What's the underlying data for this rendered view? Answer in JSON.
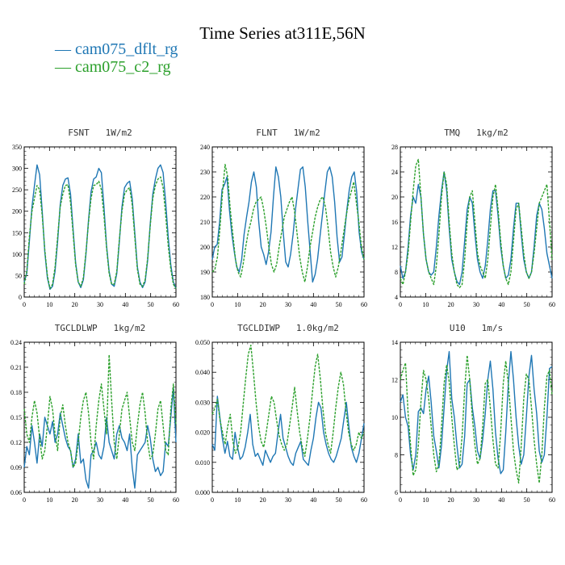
{
  "title": "Time Series at311E,56N",
  "legend": [
    {
      "label": "— cam075_dflt_rg",
      "color": "#1f77b4"
    },
    {
      "label": "— cam075_c2_rg",
      "color": "#2ca02c"
    }
  ],
  "colors": {
    "series1": "#1f77b4",
    "series2": "#2ca02c"
  },
  "chart_data": [
    {
      "type": "line",
      "title": "FSNT   1W/m2",
      "xlim": [
        0,
        60
      ],
      "ylim": [
        0,
        350
      ],
      "xticks": [
        "0",
        "10",
        "20",
        "30",
        "40",
        "50",
        "60"
      ],
      "yticks": [
        "0",
        "50",
        "100",
        "150",
        "200",
        "250",
        "300",
        "350"
      ],
      "series": [
        {
          "name": "cam075_dflt_rg",
          "values": [
            35,
            55,
            130,
            210,
            260,
            308,
            285,
            200,
            105,
            45,
            18,
            25,
            60,
            130,
            215,
            260,
            275,
            278,
            240,
            160,
            80,
            35,
            22,
            40,
            100,
            180,
            245,
            275,
            280,
            300,
            290,
            210,
            120,
            60,
            30,
            25,
            55,
            130,
            210,
            255,
            265,
            270,
            230,
            150,
            70,
            35,
            22,
            35,
            85,
            170,
            240,
            275,
            300,
            308,
            290,
            220,
            140,
            75,
            35,
            20
          ]
        },
        {
          "name": "cam075_c2_rg",
          "values": [
            30,
            60,
            140,
            200,
            230,
            260,
            250,
            190,
            110,
            50,
            20,
            30,
            70,
            140,
            210,
            240,
            260,
            262,
            220,
            150,
            75,
            35,
            25,
            45,
            105,
            175,
            230,
            260,
            262,
            270,
            250,
            190,
            115,
            55,
            30,
            30,
            60,
            135,
            200,
            240,
            250,
            255,
            215,
            140,
            65,
            30,
            25,
            40,
            90,
            165,
            230,
            260,
            275,
            280,
            255,
            190,
            120,
            65,
            30,
            20
          ]
        }
      ]
    },
    {
      "type": "line",
      "title": "FLNT   1W/m2",
      "xlim": [
        0,
        60
      ],
      "ylim": [
        180,
        240
      ],
      "xticks": [
        "0",
        "10",
        "20",
        "30",
        "40",
        "50",
        "60"
      ],
      "yticks": [
        "180",
        "190",
        "200",
        "210",
        "220",
        "230",
        "240"
      ],
      "series": [
        {
          "name": "cam075_dflt_rg",
          "values": [
            195,
            200,
            201,
            210,
            223,
            225,
            228,
            215,
            205,
            198,
            192,
            190,
            195,
            205,
            212,
            218,
            226,
            230,
            224,
            210,
            200,
            197,
            193,
            198,
            206,
            220,
            232,
            228,
            220,
            206,
            194,
            192,
            197,
            205,
            215,
            223,
            231,
            232,
            224,
            210,
            198,
            186,
            189,
            195,
            204,
            213,
            222,
            230,
            232,
            228,
            218,
            204,
            194,
            196,
            205,
            215,
            223,
            228,
            230,
            222,
            206,
            198,
            195
          ]
        },
        {
          "name": "cam075_c2_rg",
          "values": [
            190,
            191,
            196,
            208,
            222,
            233,
            228,
            215,
            205,
            195,
            190,
            188,
            193,
            200,
            206,
            210,
            215,
            218,
            219,
            220,
            215,
            208,
            200,
            193,
            190,
            193,
            200,
            206,
            212,
            215,
            218,
            220,
            214,
            205,
            196,
            190,
            186,
            192,
            200,
            206,
            212,
            216,
            219,
            220,
            216,
            208,
            198,
            192,
            188,
            192,
            198,
            205,
            212,
            218,
            222,
            226,
            218,
            210,
            200,
            195
          ]
        }
      ]
    },
    {
      "type": "line",
      "title": "TMQ   1kg/m2",
      "xlim": [
        0,
        60
      ],
      "ylim": [
        4,
        28
      ],
      "xticks": [
        "0",
        "10",
        "20",
        "30",
        "40",
        "50",
        "60"
      ],
      "yticks": [
        "4",
        "8",
        "12",
        "16",
        "20",
        "24",
        "28"
      ],
      "series": [
        {
          "name": "cam075_dflt_rg",
          "values": [
            9,
            7,
            8,
            12,
            17,
            20,
            19,
            22,
            20,
            14,
            10,
            8,
            7.5,
            8,
            12,
            17,
            21,
            24,
            21,
            15,
            10,
            8,
            6.5,
            6,
            8,
            13,
            18,
            20,
            19,
            14,
            10,
            8,
            7,
            9,
            13,
            18,
            21,
            21,
            17,
            12,
            9,
            7,
            7.5,
            10,
            15,
            19,
            19,
            14,
            10,
            8,
            7,
            8,
            12,
            17,
            19,
            18,
            15,
            11,
            9,
            7
          ]
        },
        {
          "name": "cam075_c2_rg",
          "values": [
            7,
            6,
            8,
            11,
            16,
            21,
            25,
            26,
            20,
            14,
            10,
            8,
            7,
            6,
            9,
            14,
            20,
            24,
            22,
            16,
            11,
            8,
            6,
            5.5,
            6,
            10,
            16,
            20,
            21,
            16,
            11,
            9,
            8,
            7,
            10,
            15,
            20,
            22,
            18,
            13,
            9,
            7,
            6,
            8,
            13,
            18,
            19,
            15,
            11,
            8,
            7,
            8,
            11,
            15,
            19,
            20,
            21,
            22,
            16,
            10
          ]
        }
      ]
    },
    {
      "type": "line",
      "title": "TGCLDLWP   1kg/m2",
      "xlim": [
        0,
        60
      ],
      "ylim": [
        0.06,
        0.24
      ],
      "xticks": [
        "0",
        "10",
        "20",
        "30",
        "40",
        "50",
        "60"
      ],
      "yticks": [
        "0.06",
        "0.09",
        "0.12",
        "0.15",
        "0.18",
        "0.21",
        "0.24"
      ],
      "series": [
        {
          "name": "cam075_dflt_rg",
          "values": [
            0.09,
            0.115,
            0.105,
            0.14,
            0.12,
            0.095,
            0.13,
            0.115,
            0.15,
            0.14,
            0.13,
            0.145,
            0.12,
            0.13,
            0.155,
            0.14,
            0.125,
            0.115,
            0.11,
            0.09,
            0.1,
            0.13,
            0.095,
            0.1,
            0.075,
            0.065,
            0.105,
            0.11,
            0.12,
            0.105,
            0.1,
            0.115,
            0.15,
            0.12,
            0.11,
            0.1,
            0.13,
            0.14,
            0.125,
            0.12,
            0.11,
            0.13,
            0.09,
            0.065,
            0.105,
            0.11,
            0.115,
            0.12,
            0.14,
            0.125,
            0.1,
            0.085,
            0.09,
            0.08,
            0.085,
            0.12,
            0.115,
            0.15,
            0.185,
            0.12
          ]
        },
        {
          "name": "cam075_c2_rg",
          "values": [
            0.16,
            0.13,
            0.12,
            0.15,
            0.17,
            0.155,
            0.125,
            0.1,
            0.11,
            0.14,
            0.175,
            0.16,
            0.13,
            0.11,
            0.15,
            0.165,
            0.14,
            0.12,
            0.11,
            0.09,
            0.095,
            0.12,
            0.15,
            0.17,
            0.18,
            0.155,
            0.12,
            0.1,
            0.14,
            0.17,
            0.19,
            0.16,
            0.13,
            0.225,
            0.17,
            0.12,
            0.1,
            0.13,
            0.16,
            0.17,
            0.18,
            0.15,
            0.12,
            0.11,
            0.14,
            0.165,
            0.18,
            0.155,
            0.12,
            0.1,
            0.105,
            0.13,
            0.16,
            0.17,
            0.14,
            0.11,
            0.105,
            0.16,
            0.19,
            0.14
          ]
        }
      ]
    },
    {
      "type": "line",
      "title": "TGCLDIWP   1.0kg/m2",
      "xlim": [
        0,
        60
      ],
      "ylim": [
        0.0,
        0.05
      ],
      "xticks": [
        "0",
        "10",
        "20",
        "30",
        "40",
        "50",
        "60"
      ],
      "yticks": [
        "0.000",
        "0.010",
        "0.020",
        "0.030",
        "0.040",
        "0.050"
      ],
      "series": [
        {
          "name": "cam075_dflt_rg",
          "values": [
            0.016,
            0.014,
            0.032,
            0.025,
            0.018,
            0.013,
            0.017,
            0.012,
            0.011,
            0.02,
            0.015,
            0.011,
            0.012,
            0.015,
            0.02,
            0.026,
            0.016,
            0.012,
            0.013,
            0.011,
            0.009,
            0.014,
            0.012,
            0.01,
            0.012,
            0.013,
            0.02,
            0.026,
            0.018,
            0.015,
            0.012,
            0.01,
            0.009,
            0.013,
            0.015,
            0.017,
            0.011,
            0.01,
            0.009,
            0.014,
            0.018,
            0.025,
            0.03,
            0.028,
            0.02,
            0.016,
            0.013,
            0.011,
            0.01,
            0.012,
            0.015,
            0.018,
            0.024,
            0.03,
            0.022,
            0.015,
            0.012,
            0.01,
            0.013,
            0.018,
            0.023
          ]
        },
        {
          "name": "cam075_c2_rg",
          "values": [
            0.026,
            0.028,
            0.031,
            0.024,
            0.02,
            0.016,
            0.022,
            0.026,
            0.017,
            0.013,
            0.015,
            0.02,
            0.029,
            0.038,
            0.046,
            0.049,
            0.04,
            0.03,
            0.022,
            0.017,
            0.015,
            0.02,
            0.026,
            0.032,
            0.03,
            0.024,
            0.019,
            0.016,
            0.014,
            0.016,
            0.022,
            0.028,
            0.035,
            0.027,
            0.02,
            0.015,
            0.012,
            0.018,
            0.025,
            0.034,
            0.042,
            0.046,
            0.038,
            0.028,
            0.02,
            0.016,
            0.013,
            0.02,
            0.028,
            0.035,
            0.04,
            0.036,
            0.027,
            0.02,
            0.016,
            0.014,
            0.016,
            0.02,
            0.018,
            0.02
          ]
        }
      ]
    },
    {
      "type": "line",
      "title": "U10   1m/s",
      "xlim": [
        0,
        60
      ],
      "ylim": [
        6,
        14
      ],
      "xticks": [
        "0",
        "10",
        "20",
        "30",
        "40",
        "50",
        "60"
      ],
      "yticks": [
        "6",
        "8",
        "10",
        "12",
        "14"
      ],
      "series": [
        {
          "name": "cam075_dflt_rg",
          "values": [
            10.8,
            11.2,
            10,
            9.5,
            8,
            7.2,
            8,
            10.3,
            10.5,
            10.2,
            11.5,
            12.2,
            10.8,
            9,
            8.2,
            7.3,
            8.5,
            10.5,
            12.5,
            13.5,
            11,
            10,
            8.5,
            7.3,
            7.5,
            9,
            11.8,
            12,
            10.5,
            9.5,
            8.2,
            7.8,
            8.8,
            10.2,
            12,
            13,
            11.5,
            9.2,
            7.8,
            7,
            7.2,
            9.2,
            11.8,
            13.5,
            12,
            10,
            8.5,
            7.5,
            8,
            10,
            12.2,
            13.3,
            11.5,
            10.2,
            8.2,
            7.6,
            8,
            10,
            12.6,
            12.7
          ]
        },
        {
          "name": "cam075_c2_rg",
          "values": [
            12,
            12.5,
            12.9,
            10.2,
            8.5,
            6.9,
            7.2,
            8.5,
            10.8,
            12.5,
            12,
            11,
            9.5,
            8,
            7.1,
            7.5,
            9.5,
            11.8,
            12.8,
            11.9,
            10,
            8.5,
            7.2,
            7.4,
            9,
            11.5,
            13.3,
            12,
            10,
            8.5,
            7.5,
            7.8,
            9.5,
            11.8,
            12,
            10.5,
            8.8,
            7.5,
            7.3,
            9.2,
            11.8,
            13,
            11.8,
            10,
            8.2,
            7.2,
            6.5,
            8.5,
            11,
            12.3,
            12,
            10.5,
            8.8,
            7.5,
            6.5,
            8,
            10.5,
            12.2,
            12.5,
            11.2
          ]
        }
      ]
    }
  ]
}
